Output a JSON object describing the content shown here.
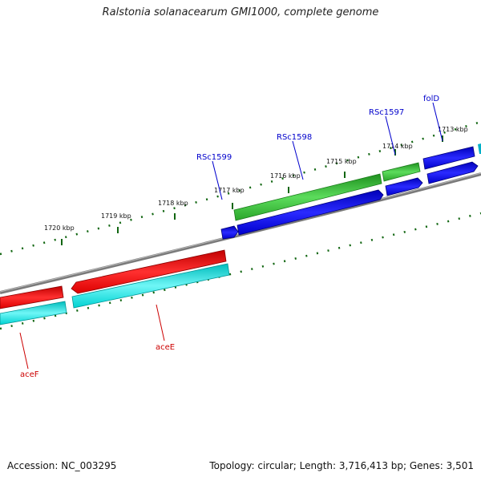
{
  "title": "Ralstonia solanacearum GMI1000, complete genome",
  "footer": {
    "accession": "Accession: NC_003295",
    "stats": "Topology: circular; Length: 3,716,413 bp; Genes: 3,501"
  },
  "scale_ticks": [
    "1713 kbp",
    "1714 kbp",
    "1715 kbp",
    "1716 kbp",
    "1717 kbp",
    "1718 kbp",
    "1719 kbp",
    "1720 kbp"
  ],
  "gene_labels": {
    "folD": "folD",
    "RSc1597": "RSc1597",
    "RSc1598": "RSc1598",
    "RSc1599": "RSc1599",
    "aceE": "aceE",
    "aceF": "aceF"
  },
  "colors": {
    "forward_cds_blue": "#0000ee",
    "gene_green": "#33bb33",
    "reverse_cds_red": "#ee0000",
    "reverse_gene_cyan": "#00e5e5",
    "backbone": "#808080",
    "tick_green": "#116611",
    "label_forward": "#0000cc",
    "label_reverse": "#cc0000"
  }
}
